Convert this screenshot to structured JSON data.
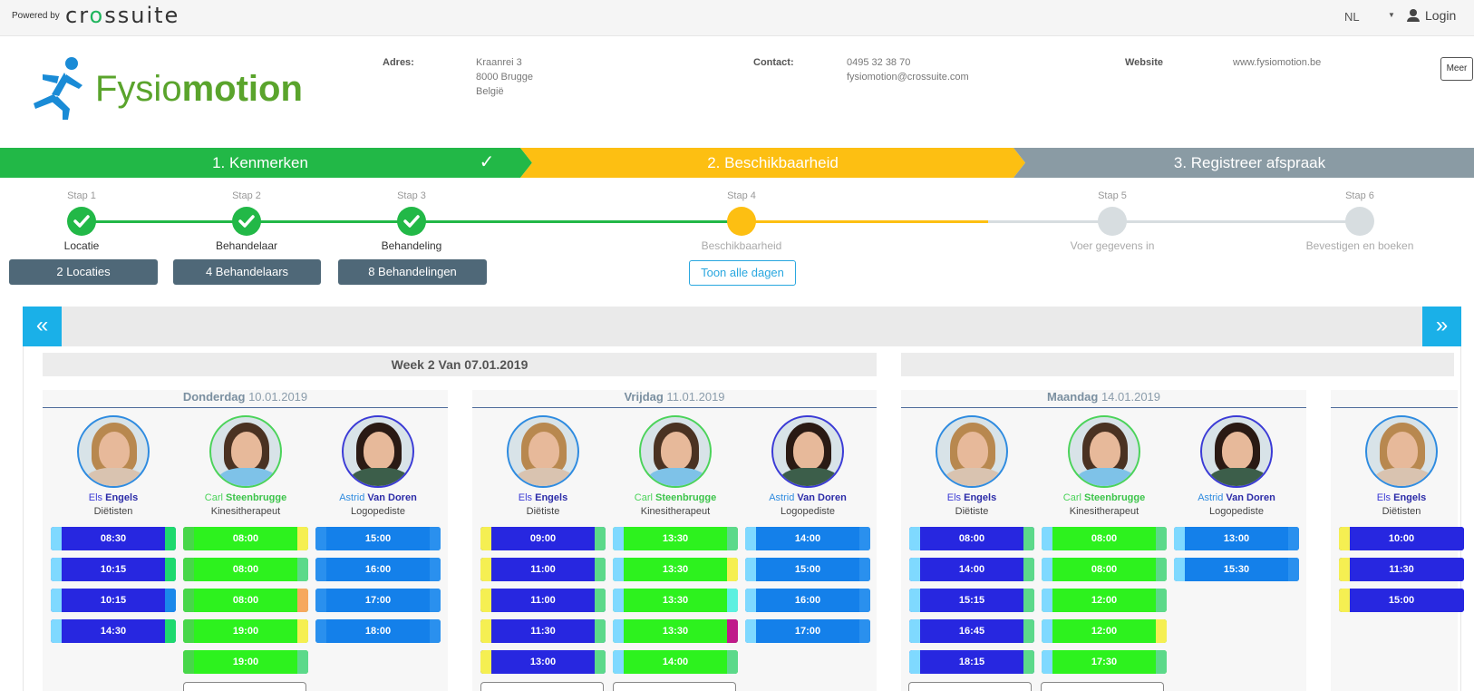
{
  "topbar": {
    "powered_by": "Powered by",
    "brand": "crossuite",
    "language": "NL",
    "login": "Login"
  },
  "header": {
    "logo_text_light": "Fysio",
    "logo_text_bold": "motion",
    "address_label": "Adres:",
    "address_lines": [
      "Kraanrei 3",
      "8000 Brugge",
      "België"
    ],
    "contact_label": "Contact:",
    "contact_lines": [
      "0495 32 38 70",
      "fysiomotion@crossuite.com"
    ],
    "website_label": "Website",
    "website": "www.fysiomotion.be",
    "more_button": "Meer"
  },
  "ribbon": [
    {
      "label": "1. Kenmerken",
      "check": "✓",
      "color": "#22b847"
    },
    {
      "label": "2. Beschikbaarheid",
      "color": "#fdbf12"
    },
    {
      "label": "3. Registreer afspraak",
      "color": "#8a9ba4"
    }
  ],
  "steps": [
    {
      "label": "Stap 1",
      "name": "Locatie",
      "state": "done",
      "button": "2 Locaties"
    },
    {
      "label": "Stap 2",
      "name": "Behandelaar",
      "state": "done",
      "button": "4 Behandelaars"
    },
    {
      "label": "Stap 3",
      "name": "Behandeling",
      "state": "done",
      "button": "8 Behandelingen"
    },
    {
      "label": "Stap 4",
      "name": "Beschikbaarheid",
      "state": "active",
      "button": "Toon alle dagen"
    },
    {
      "label": "Stap 5",
      "name": "Voer gegevens in",
      "state": "todo"
    },
    {
      "label": "Stap 6",
      "name": "Bevestigen en boeken",
      "state": "todo"
    }
  ],
  "calendar": {
    "prev": "«",
    "next": "»",
    "week_title": "Week 2 Van 07.01.2019",
    "colors": {
      "blue": "#2727e0",
      "green": "#2df21e",
      "azure": "#1480ea"
    },
    "days": [
      {
        "day": "Donderdag",
        "date": "10.01.2019",
        "people": [
          {
            "first": "Els",
            "last": "Engels",
            "role": "Diëtisten",
            "type": "blue",
            "slots": [
              [
                "08:30",
                "#7fd9ff",
                "#1ed96e"
              ],
              [
                "10:15",
                "#7fd9ff",
                "#1ed96e"
              ],
              [
                "10:15",
                "#7fd9ff",
                "#1b88ea"
              ],
              [
                "14:30",
                "#7fd9ff",
                "#1ed96e"
              ]
            ]
          },
          {
            "first": "Carl",
            "last": "Steenbrugge",
            "role": "Kinesitherapeut",
            "type": "green",
            "slots": [
              [
                "08:00",
                "#48d64a",
                "#f5ef52"
              ],
              [
                "08:00",
                "#48d64a",
                "#5cd98a"
              ],
              [
                "08:00",
                "#48d64a",
                "#f6a85e"
              ],
              [
                "19:00",
                "#48d64a",
                "#f5ef52"
              ],
              [
                "19:00",
                "#48d64a",
                "#5cd98a"
              ]
            ]
          },
          {
            "first": "Astrid",
            "last": "Van Doren",
            "role": "Logopediste",
            "type": "azure",
            "slots": [
              [
                "15:00",
                "#2a90ee",
                "#2a90ee"
              ],
              [
                "16:00",
                "#2a90ee",
                "#2a90ee"
              ],
              [
                "17:00",
                "#2a90ee",
                "#2a90ee"
              ],
              [
                "18:00",
                "#2a90ee",
                "#2a90ee"
              ]
            ]
          }
        ]
      },
      {
        "day": "Vrijdag",
        "date": "11.01.2019",
        "people": [
          {
            "first": "Els",
            "last": "Engels",
            "role": "Diëtiste",
            "type": "blue",
            "slots": [
              [
                "09:00",
                "#f5ef52",
                "#5cd98a"
              ],
              [
                "11:00",
                "#f5ef52",
                "#5cd98a"
              ],
              [
                "11:00",
                "#f5ef52",
                "#5cd98a"
              ],
              [
                "11:30",
                "#f5ef52",
                "#5cd98a"
              ],
              [
                "13:00",
                "#f5ef52",
                "#5cd98a"
              ]
            ]
          },
          {
            "first": "Carl",
            "last": "Steenbrugge",
            "role": "Kinesitherapeut",
            "type": "green",
            "slots": [
              [
                "13:30",
                "#7fd9ff",
                "#5cd98a"
              ],
              [
                "13:30",
                "#7fd9ff",
                "#f5ef52"
              ],
              [
                "13:30",
                "#7fd9ff",
                "#5cf0e0"
              ],
              [
                "13:30",
                "#7fd9ff",
                "#c01a8a"
              ],
              [
                "14:00",
                "#7fd9ff",
                "#5cd98a"
              ]
            ]
          },
          {
            "first": "Astrid",
            "last": "Van Doren",
            "role": "Logopediste",
            "type": "azure",
            "slots": [
              [
                "14:00",
                "#7fd9ff",
                "#2a90ee"
              ],
              [
                "15:00",
                "#7fd9ff",
                "#2a90ee"
              ],
              [
                "16:00",
                "#7fd9ff",
                "#2a90ee"
              ],
              [
                "17:00",
                "#7fd9ff",
                "#2a90ee"
              ]
            ]
          }
        ]
      },
      {
        "day": "Maandag",
        "date": "14.01.2019",
        "people": [
          {
            "first": "Els",
            "last": "Engels",
            "role": "Diëtiste",
            "type": "blue",
            "slots": [
              [
                "08:00",
                "#7fd9ff",
                "#5cd98a"
              ],
              [
                "14:00",
                "#7fd9ff",
                "#5cd98a"
              ],
              [
                "15:15",
                "#7fd9ff",
                "#5cd98a"
              ],
              [
                "16:45",
                "#7fd9ff",
                "#5cd98a"
              ],
              [
                "18:15",
                "#7fd9ff",
                "#5cd98a"
              ]
            ]
          },
          {
            "first": "Carl",
            "last": "Steenbrugge",
            "role": "Kinesitherapeut",
            "type": "green",
            "slots": [
              [
                "08:00",
                "#7fd9ff",
                "#5cd98a"
              ],
              [
                "08:00",
                "#7fd9ff",
                "#5cd98a"
              ],
              [
                "12:00",
                "#7fd9ff",
                "#5cd98a"
              ],
              [
                "12:00",
                "#7fd9ff",
                "#f5ef52"
              ],
              [
                "17:30",
                "#7fd9ff",
                "#5cd98a"
              ]
            ]
          },
          {
            "first": "Astrid",
            "last": "Van Doren",
            "role": "Logopediste",
            "type": "azure",
            "slots": [
              [
                "13:00",
                "#7fd9ff",
                "#2a90ee"
              ],
              [
                "15:30",
                "#7fd9ff",
                "#2a90ee"
              ]
            ]
          }
        ]
      },
      {
        "day": "",
        "date": "",
        "people": [
          {
            "first": "Els",
            "last": "Engels",
            "role": "Diëtisten",
            "type": "blue",
            "slots": [
              [
                "10:00",
                "#f5ef52",
                "#2727e0"
              ],
              [
                "11:30",
                "#f5ef52",
                "#2727e0"
              ],
              [
                "15:00",
                "#f5ef52",
                "#2727e0"
              ]
            ]
          }
        ]
      }
    ]
  }
}
